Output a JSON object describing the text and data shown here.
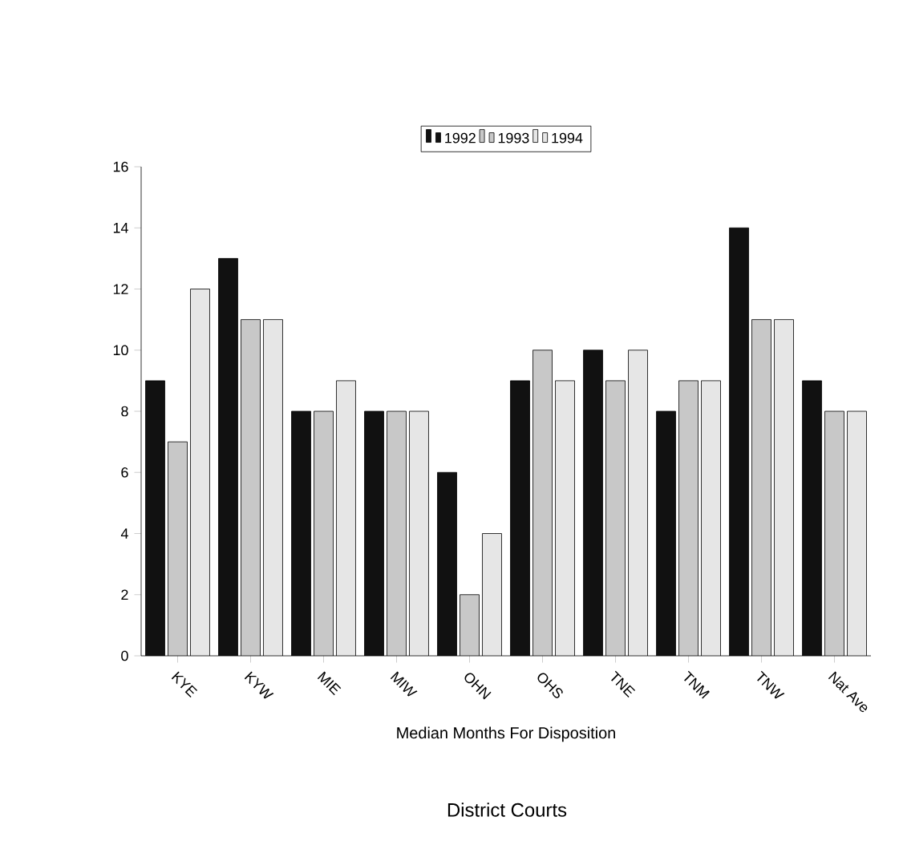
{
  "chart_data": {
    "type": "bar",
    "xlabel": "Median Months For Disposition",
    "annotations": [
      "District Courts"
    ],
    "categories": [
      "KYE",
      "KYW",
      "MIE",
      "MIW",
      "OHN",
      "OHS",
      "TNE",
      "TNM",
      "TNW",
      "Nat Ave"
    ],
    "series": [
      {
        "name": "1992",
        "color": "#111111",
        "values": [
          9,
          13,
          8,
          8,
          6,
          9,
          10,
          8,
          14,
          9
        ]
      },
      {
        "name": "1993",
        "color": "#c8c8c8",
        "values": [
          7,
          11,
          8,
          8,
          2,
          10,
          9,
          9,
          11,
          8
        ]
      },
      {
        "name": "1994",
        "color": "#e6e6e6",
        "values": [
          12,
          11,
          9,
          8,
          4,
          9,
          10,
          9,
          11,
          8
        ]
      }
    ],
    "ylim": [
      0,
      16
    ],
    "yticks": [
      0,
      2,
      4,
      6,
      8,
      10,
      12,
      14,
      16
    ],
    "grid": false,
    "legend": "top"
  }
}
